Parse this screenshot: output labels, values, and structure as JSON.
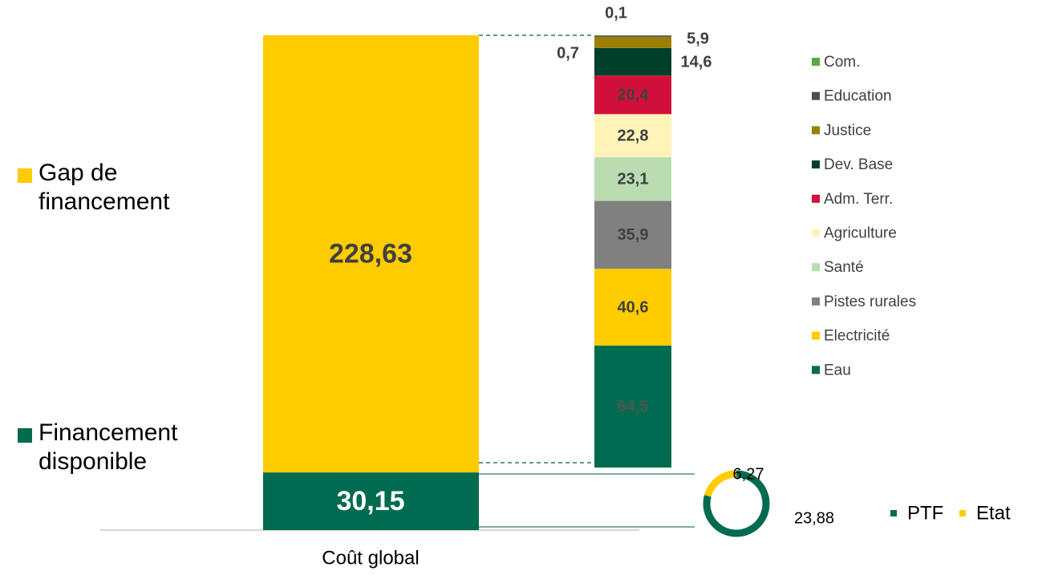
{
  "chart_data": [
    {
      "type": "bar",
      "stacked": true,
      "categories": [
        "Coût global"
      ],
      "series": [
        {
          "name": "Financement disponible",
          "color": "#006b4f",
          "values": [
            30.15
          ],
          "value_labels": [
            "30,15"
          ]
        },
        {
          "name": "Gap de financement",
          "color": "#ffcc00",
          "values": [
            228.63
          ],
          "value_labels": [
            "228,63"
          ]
        }
      ]
    },
    {
      "type": "bar",
      "stacked": true,
      "series": [
        {
          "name": "Eau",
          "color": "#006b4f",
          "values": [
            64.5
          ],
          "value_labels": [
            "64,5"
          ]
        },
        {
          "name": "Electricité",
          "color": "#ffcc00",
          "values": [
            40.6
          ],
          "value_labels": [
            "40,6"
          ]
        },
        {
          "name": "Pistes rurales",
          "color": "#808080",
          "values": [
            35.9
          ],
          "value_labels": [
            "35,9"
          ]
        },
        {
          "name": "Santé",
          "color": "#b9dcb0",
          "values": [
            23.1
          ],
          "value_labels": [
            "23,1"
          ]
        },
        {
          "name": "Agriculture",
          "color": "#fff3b8",
          "values": [
            22.8
          ],
          "value_labels": [
            "22,8"
          ]
        },
        {
          "name": "Adm. Terr.",
          "color": "#d0103a",
          "values": [
            20.4
          ],
          "value_labels": [
            "20,4"
          ]
        },
        {
          "name": "Dev. Base",
          "color": "#00402a",
          "values": [
            14.6
          ],
          "value_labels": [
            "14,6"
          ]
        },
        {
          "name": "Justice",
          "color": "#9c7f00",
          "values": [
            5.9
          ],
          "value_labels": [
            "5,9"
          ]
        },
        {
          "name": "Education",
          "color": "#4d4d4d",
          "values": [
            0.7
          ],
          "value_labels": [
            "0,7"
          ]
        },
        {
          "name": "Com.",
          "color": "#5ca644",
          "values": [
            0.1
          ],
          "value_labels": [
            "0,1"
          ]
        }
      ]
    },
    {
      "type": "pie",
      "donut": true,
      "categories": [
        "PTF",
        "Etat"
      ],
      "values": [
        23.88,
        6.27
      ],
      "value_labels": [
        "23,88",
        "6,27"
      ],
      "colors": [
        "#006b4f",
        "#ffcc00"
      ]
    }
  ]
}
